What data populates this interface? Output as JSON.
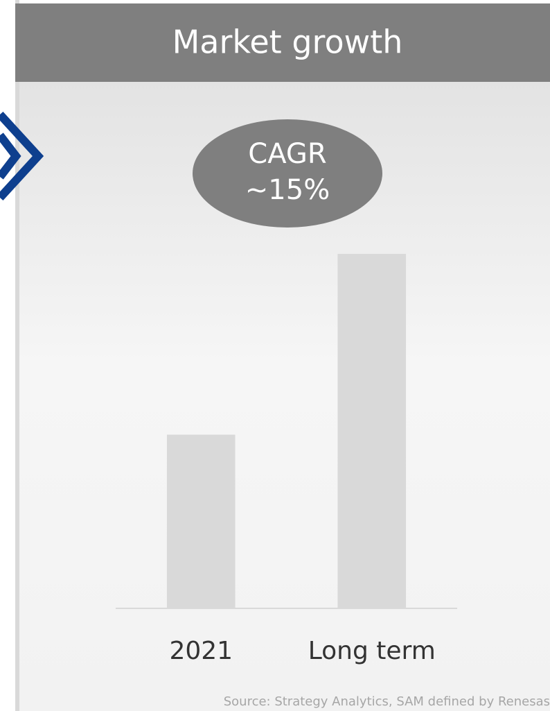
{
  "chart_data": {
    "type": "bar",
    "title": "Market growth",
    "annotations": [
      "CAGR",
      "~15%"
    ],
    "categories": [
      "2021",
      "Long term"
    ],
    "values": [
      49,
      100
    ],
    "color": "#d9d9d9",
    "ylim": [
      0,
      100
    ],
    "source": "Source: Strategy Analytics, SAM defined by Renesas"
  }
}
